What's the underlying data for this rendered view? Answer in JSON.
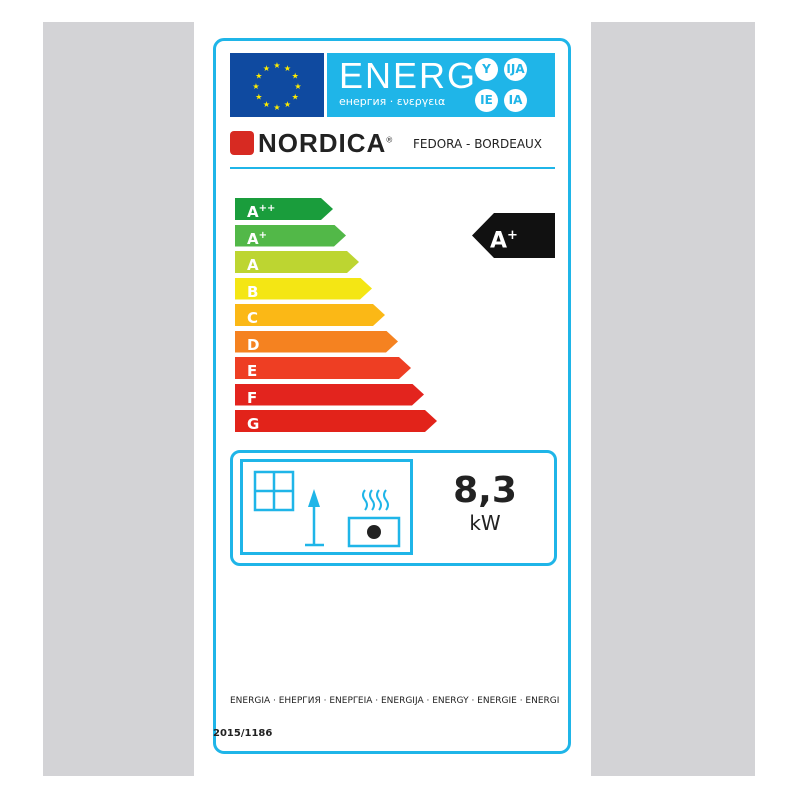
{
  "header": {
    "energy_title": "ENERG",
    "energy_subtitle": "енергия · ενεργεια",
    "suffixes": [
      "Y",
      "IJA",
      "IE",
      "IA"
    ]
  },
  "brand": {
    "name": "NORDICA",
    "registered": "®",
    "model": "FEDORA - BORDEAUX"
  },
  "scale": {
    "classes": [
      {
        "letter": "A",
        "sup": "++",
        "color": "#1a9d3c"
      },
      {
        "letter": "A",
        "sup": "+",
        "color": "#52b848"
      },
      {
        "letter": "A",
        "sup": "",
        "color": "#bdd531"
      },
      {
        "letter": "B",
        "sup": "",
        "color": "#f4e614"
      },
      {
        "letter": "C",
        "sup": "",
        "color": "#fbb816"
      },
      {
        "letter": "D",
        "sup": "",
        "color": "#f58220"
      },
      {
        "letter": "E",
        "sup": "",
        "color": "#ee3e23"
      },
      {
        "letter": "F",
        "sup": "",
        "color": "#e3241e"
      },
      {
        "letter": "G",
        "sup": "",
        "color": "#e2231a"
      }
    ]
  },
  "rating": {
    "letter": "A",
    "sup": "+"
  },
  "power": {
    "value": "8,3",
    "unit": "kW"
  },
  "footer": {
    "languages": "ENERGIA · ЕНЕРГИЯ · ΕΝΕΡΓΕΙΑ · ENERGIJA · ENERGY · ENERGIE · ENERGI",
    "regulation": "2015/1186"
  },
  "colors": {
    "accent": "#1fb5e8",
    "eu_blue": "#0f4aa0",
    "brand_red": "#d72a22"
  }
}
